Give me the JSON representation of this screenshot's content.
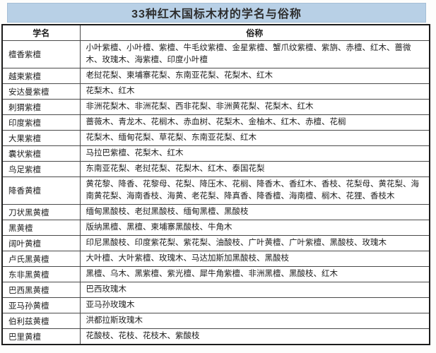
{
  "title": "33种红木国标木材的学名与俗称",
  "table": {
    "headers": [
      "学名",
      "俗称"
    ],
    "separator": "、",
    "rows": [
      {
        "scientific_name": "檀香紫檀",
        "common_names": [
          "小叶紫檀",
          "小叶檀",
          "紫檀",
          "牛毛纹紫檀",
          "金星紫檀",
          "蟹爪纹紫檀",
          "紫旃",
          "赤檀",
          "红木",
          "蔷微木",
          "玫瑰木",
          "海紫檀",
          "印度小叶檀"
        ]
      },
      {
        "scientific_name": "越柬紫檀",
        "common_names": [
          "老挝花梨",
          "柬埔寨花梨",
          "东南亚花梨",
          "花梨木",
          "红木"
        ]
      },
      {
        "scientific_name": "安达曼紫檀",
        "common_names": [
          "花梨木",
          "红木"
        ]
      },
      {
        "scientific_name": "刺猬紫檀",
        "common_names": [
          "非洲花梨木",
          "非洲花梨",
          "西非花梨",
          "非洲黄花梨",
          "花梨木",
          "红木"
        ]
      },
      {
        "scientific_name": "印度紫檀",
        "common_names": [
          "蔷薇木",
          "青龙木",
          "花榈木",
          "赤血树",
          "花梨木",
          "金柚木",
          "红木",
          "赤檀",
          "花榈"
        ]
      },
      {
        "scientific_name": "大果紫檀",
        "common_names": [
          "花梨木",
          "缅甸花梨",
          "草花梨",
          "东南亚花梨",
          "红木"
        ]
      },
      {
        "scientific_name": "囊状紫檀",
        "common_names": [
          "马拉巴紫檀",
          "花梨木",
          "红木"
        ]
      },
      {
        "scientific_name": "鸟足紫檀",
        "common_names": [
          "东南亚花梨",
          "老挝花梨",
          "花梨木",
          "红木",
          "泰国花梨"
        ]
      },
      {
        "scientific_name": "降香黄檀",
        "common_names": [
          "黄花黎",
          "降香",
          "花黎母",
          "花梨",
          "降压木",
          "花榈",
          "降香木",
          "香红木",
          "香枝",
          "花梨母",
          "黄花梨",
          "海南黄花梨",
          "海南香枝",
          "海黄",
          "老花梨",
          "降真香",
          "降香檀",
          "海南檀",
          "榈木",
          "花狸",
          "香枝木"
        ]
      },
      {
        "scientific_name": "刀状黑黄檀",
        "common_names": [
          "缅甸黑酸枝",
          "老挝黑酸枝",
          "缅甸黑檀",
          "黑酸枝"
        ]
      },
      {
        "scientific_name": "黑黄檀",
        "common_names": [
          "版纳黑檀",
          "黑檀",
          "柬埔寨黑酸枝",
          "牛角木"
        ]
      },
      {
        "scientific_name": "阔叶黄檀",
        "common_names": [
          "印尼黑酸枝",
          "印度紫花梨",
          "紫花梨",
          "油酸枝",
          "广叶黄檀",
          "广叶紫檀",
          "黑酸枝",
          "玫瑰木"
        ]
      },
      {
        "scientific_name": "卢氏黑黄檀",
        "common_names": [
          "大叶檀",
          "大叶紫檀",
          "玫瑰木",
          "马达加斯加黑酸枝",
          "黑酸枝"
        ]
      },
      {
        "scientific_name": "东非黑黄檀",
        "common_names": [
          "黑檀",
          "乌木",
          "黑紫檀",
          "紫光檀",
          "犀牛角紫檀",
          "非洲黑檀",
          "黑酸枝",
          "红木"
        ]
      },
      {
        "scientific_name": "巴西黑黄檀",
        "common_names": [
          "巴西玫瑰木"
        ]
      },
      {
        "scientific_name": "亚马孙黄檀",
        "common_names": [
          "亚马孙玫瑰木"
        ]
      },
      {
        "scientific_name": "伯利兹黄檀",
        "common_names": [
          "洪都拉斯玫瑰木"
        ]
      },
      {
        "scientific_name": "巴里黄檀",
        "common_names": [
          "花酸枝",
          "花枝",
          "花枝木",
          "紫酸枝"
        ]
      }
    ]
  }
}
